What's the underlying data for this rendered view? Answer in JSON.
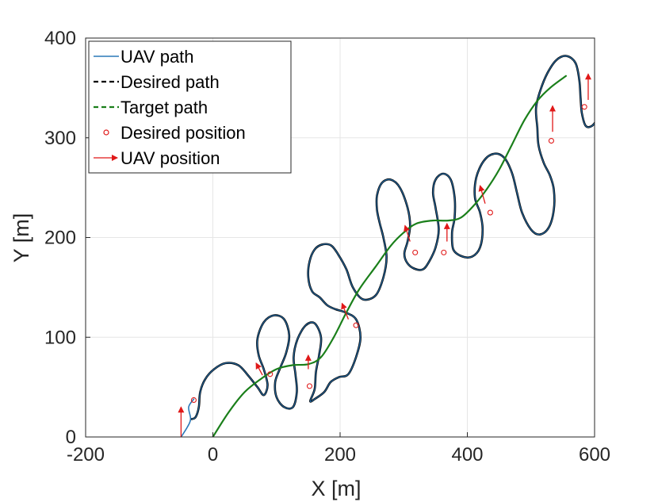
{
  "chart_data": {
    "type": "line",
    "xlabel": "X [m]",
    "ylabel": "Y [m]",
    "xlim": [
      -200,
      600
    ],
    "ylim": [
      0,
      400
    ],
    "x_ticks": [
      -200,
      0,
      200,
      400,
      600
    ],
    "y_ticks": [
      0,
      100,
      200,
      300,
      400
    ],
    "grid": true,
    "legend_position": "top-left",
    "colors": {
      "uav_path": "#2a78b8",
      "desired_path": "#000000",
      "target_path": "#1a7f1a",
      "desired_position": "#e01818",
      "uav_position": "#e01818",
      "grid": "#e6e6e6",
      "axes": "#262626"
    },
    "legend": [
      {
        "key": "uav_path",
        "label": "UAV path",
        "style": "solid-line"
      },
      {
        "key": "desired_path",
        "label": "Desired path",
        "style": "dashed-line"
      },
      {
        "key": "target_path",
        "label": "Target path",
        "style": "dashed-line"
      },
      {
        "key": "desired_position",
        "label": "Desired position",
        "style": "circle-marker"
      },
      {
        "key": "uav_position",
        "label": "UAV position",
        "style": "arrow"
      }
    ],
    "series": [
      {
        "key": "target_path",
        "points": [
          [
            0,
            0
          ],
          [
            25,
            25
          ],
          [
            50,
            45
          ],
          [
            75,
            58
          ],
          [
            100,
            68
          ],
          [
            125,
            72
          ],
          [
            150,
            73
          ],
          [
            170,
            80
          ],
          [
            190,
            100
          ],
          [
            210,
            125
          ],
          [
            230,
            148
          ],
          [
            255,
            170
          ],
          [
            280,
            192
          ],
          [
            300,
            205
          ],
          [
            320,
            214
          ],
          [
            345,
            217
          ],
          [
            370,
            217
          ],
          [
            390,
            220
          ],
          [
            410,
            232
          ],
          [
            430,
            248
          ],
          [
            450,
            268
          ],
          [
            470,
            293
          ],
          [
            490,
            318
          ],
          [
            510,
            337
          ],
          [
            530,
            350
          ],
          [
            555,
            362
          ]
        ]
      },
      {
        "key": "uav_path",
        "points": [
          [
            -50,
            0
          ],
          [
            -40,
            10
          ],
          [
            -35,
            18
          ],
          [
            -38,
            30
          ],
          [
            -30,
            38
          ]
        ]
      },
      {
        "key": "desired_path",
        "points": [
          [
            -33,
            18
          ],
          [
            -27,
            20
          ],
          [
            -22,
            30
          ],
          [
            -20,
            45
          ],
          [
            -12,
            58
          ],
          [
            2,
            68
          ],
          [
            20,
            74
          ],
          [
            40,
            72
          ],
          [
            55,
            62
          ],
          [
            70,
            50
          ],
          [
            80,
            42
          ],
          [
            86,
            52
          ],
          [
            80,
            68
          ],
          [
            72,
            82
          ],
          [
            70,
            98
          ],
          [
            80,
            115
          ],
          [
            96,
            122
          ],
          [
            112,
            118
          ],
          [
            120,
            102
          ],
          [
            115,
            84
          ],
          [
            105,
            68
          ],
          [
            98,
            55
          ],
          [
            100,
            40
          ],
          [
            112,
            30
          ],
          [
            126,
            30
          ],
          [
            132,
            45
          ],
          [
            130,
            62
          ],
          [
            127,
            80
          ],
          [
            133,
            98
          ],
          [
            146,
            112
          ],
          [
            160,
            114
          ],
          [
            170,
            100
          ],
          [
            167,
            82
          ],
          [
            162,
            65
          ],
          [
            160,
            48
          ],
          [
            153,
            36
          ],
          [
            160,
            38
          ],
          [
            175,
            45
          ],
          [
            185,
            55
          ],
          [
            198,
            60
          ],
          [
            213,
            63
          ],
          [
            225,
            80
          ],
          [
            232,
            100
          ],
          [
            225,
            118
          ],
          [
            208,
            125
          ],
          [
            193,
            128
          ],
          [
            180,
            132
          ],
          [
            168,
            140
          ],
          [
            156,
            146
          ],
          [
            150,
            160
          ],
          [
            152,
            176
          ],
          [
            160,
            188
          ],
          [
            172,
            193
          ],
          [
            186,
            192
          ],
          [
            197,
            183
          ],
          [
            210,
            168
          ],
          [
            220,
            150
          ],
          [
            236,
            138
          ],
          [
            256,
            142
          ],
          [
            268,
            160
          ],
          [
            273,
            180
          ],
          [
            268,
            200
          ],
          [
            262,
            215
          ],
          [
            258,
            228
          ],
          [
            258,
            242
          ],
          [
            266,
            255
          ],
          [
            280,
            258
          ],
          [
            294,
            250
          ],
          [
            306,
            230
          ],
          [
            310,
            212
          ],
          [
            306,
            196
          ],
          [
            301,
            184
          ],
          [
            305,
            175
          ],
          [
            316,
            169
          ],
          [
            330,
            168
          ],
          [
            340,
            176
          ],
          [
            350,
            190
          ],
          [
            355,
            208
          ],
          [
            350,
            230
          ],
          [
            346,
            245
          ],
          [
            350,
            258
          ],
          [
            362,
            264
          ],
          [
            374,
            258
          ],
          [
            380,
            240
          ],
          [
            380,
            220
          ],
          [
            376,
            205
          ],
          [
            378,
            188
          ],
          [
            392,
            181
          ],
          [
            408,
            181
          ],
          [
            420,
            190
          ],
          [
            424,
            208
          ],
          [
            420,
            225
          ],
          [
            412,
            240
          ],
          [
            414,
            260
          ],
          [
            426,
            277
          ],
          [
            442,
            284
          ],
          [
            458,
            280
          ],
          [
            470,
            265
          ],
          [
            478,
            245
          ],
          [
            486,
            225
          ],
          [
            500,
            208
          ],
          [
            514,
            203
          ],
          [
            528,
            210
          ],
          [
            536,
            228
          ],
          [
            536,
            248
          ],
          [
            530,
            262
          ],
          [
            520,
            275
          ],
          [
            512,
            292
          ],
          [
            510,
            310
          ],
          [
            508,
            330
          ],
          [
            515,
            348
          ],
          [
            526,
            365
          ],
          [
            540,
            378
          ],
          [
            556,
            382
          ],
          [
            570,
            375
          ],
          [
            576,
            358
          ],
          [
            578,
            340
          ],
          [
            580,
            325
          ],
          [
            586,
            312
          ],
          [
            596,
            312
          ],
          [
            604,
            320
          ],
          [
            607,
            336
          ]
        ]
      }
    ],
    "desired_positions": [
      [
        -30,
        37
      ],
      [
        90,
        63
      ],
      [
        152,
        51
      ],
      [
        225,
        112
      ],
      [
        318,
        185
      ],
      [
        363,
        185
      ],
      [
        436,
        225
      ],
      [
        532,
        297
      ],
      [
        584,
        331
      ]
    ],
    "uav_positions": [
      {
        "x": -50,
        "y": 0,
        "dx": 0,
        "dy": 30
      },
      {
        "x": 78,
        "y": 62,
        "dx": -10,
        "dy": 12
      },
      {
        "x": 150,
        "y": 68,
        "dx": 0,
        "dy": 14
      },
      {
        "x": 213,
        "y": 118,
        "dx": -10,
        "dy": 16
      },
      {
        "x": 310,
        "y": 196,
        "dx": -8,
        "dy": 16
      },
      {
        "x": 368,
        "y": 196,
        "dx": 0,
        "dy": 18
      },
      {
        "x": 428,
        "y": 234,
        "dx": -8,
        "dy": 18
      },
      {
        "x": 534,
        "y": 306,
        "dx": 0,
        "dy": 26
      },
      {
        "x": 590,
        "y": 338,
        "dx": 0,
        "dy": 26
      }
    ]
  }
}
